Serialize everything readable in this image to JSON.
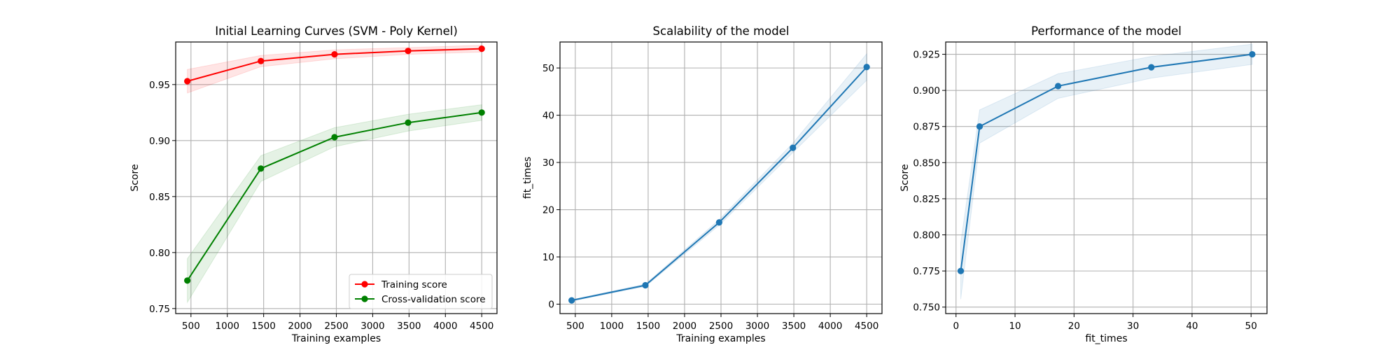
{
  "chart_data": [
    {
      "type": "line",
      "title": "Initial Learning Curves (SVM - Poly Kernel)",
      "xlabel": "Training examples",
      "ylabel": "Score",
      "xlim": [
        290,
        4710
      ],
      "ylim": [
        0.7455,
        0.988
      ],
      "xticks": [
        500,
        1000,
        1500,
        2000,
        2500,
        3000,
        3500,
        4000,
        4500
      ],
      "xtick_labels": [
        "500",
        "1000",
        "1500",
        "2000",
        "2500",
        "3000",
        "3500",
        "4000",
        "4500"
      ],
      "yticks": [
        0.75,
        0.8,
        0.85,
        0.9,
        0.95
      ],
      "ytick_labels": [
        "0.75",
        "0.80",
        "0.85",
        "0.90",
        "0.95"
      ],
      "grid": true,
      "legend_position": "lower-right",
      "x": [
        450,
        1462,
        2475,
        3487,
        4500
      ],
      "series": [
        {
          "name": "Training score",
          "color": "#ff0000",
          "values": [
            0.953,
            0.971,
            0.977,
            0.98,
            0.982
          ],
          "band": [
            0.0105,
            0.005,
            0.004,
            0.003,
            0.003
          ]
        },
        {
          "name": "Cross-validation score",
          "color": "#008000",
          "values": [
            0.775,
            0.875,
            0.903,
            0.916,
            0.925
          ],
          "band": [
            0.0195,
            0.0115,
            0.0085,
            0.0075,
            0.007
          ]
        }
      ]
    },
    {
      "type": "line",
      "title": "Scalability of the model",
      "xlabel": "Training examples",
      "ylabel": "fit_times",
      "xlim": [
        290,
        4710
      ],
      "ylim": [
        -2.0,
        55.5
      ],
      "xticks": [
        500,
        1000,
        1500,
        2000,
        2500,
        3000,
        3500,
        4000,
        4500
      ],
      "xtick_labels": [
        "500",
        "1000",
        "1500",
        "2000",
        "2500",
        "3000",
        "3500",
        "4000",
        "4500"
      ],
      "yticks": [
        0,
        10,
        20,
        30,
        40,
        50
      ],
      "ytick_labels": [
        "0",
        "10",
        "20",
        "30",
        "40",
        "50"
      ],
      "grid": true,
      "x": [
        450,
        1462,
        2475,
        3487,
        4500
      ],
      "series": [
        {
          "color": "#1f77b4",
          "values": [
            0.8,
            4.0,
            17.3,
            33.1,
            50.2
          ],
          "band": [
            0.15,
            0.25,
            0.6,
            1.0,
            2.8
          ]
        }
      ]
    },
    {
      "type": "line",
      "title": "Performance of the model",
      "xlabel": "fit_times",
      "ylabel": "Score",
      "xlim": [
        -1.75,
        52.7
      ],
      "ylim": [
        0.7455,
        0.9335
      ],
      "xticks": [
        0,
        10,
        20,
        30,
        40,
        50
      ],
      "xtick_labels": [
        "0",
        "10",
        "20",
        "30",
        "40",
        "50"
      ],
      "yticks": [
        0.75,
        0.775,
        0.8,
        0.825,
        0.85,
        0.875,
        0.9,
        0.925
      ],
      "ytick_labels": [
        "0.750",
        "0.775",
        "0.800",
        "0.825",
        "0.850",
        "0.875",
        "0.900",
        "0.925"
      ],
      "grid": true,
      "x": [
        0.8,
        4.0,
        17.3,
        33.1,
        50.2
      ],
      "series": [
        {
          "color": "#1f77b4",
          "values": [
            0.775,
            0.875,
            0.903,
            0.916,
            0.925
          ],
          "band": [
            0.0195,
            0.0115,
            0.0085,
            0.0075,
            0.007
          ]
        }
      ]
    }
  ]
}
